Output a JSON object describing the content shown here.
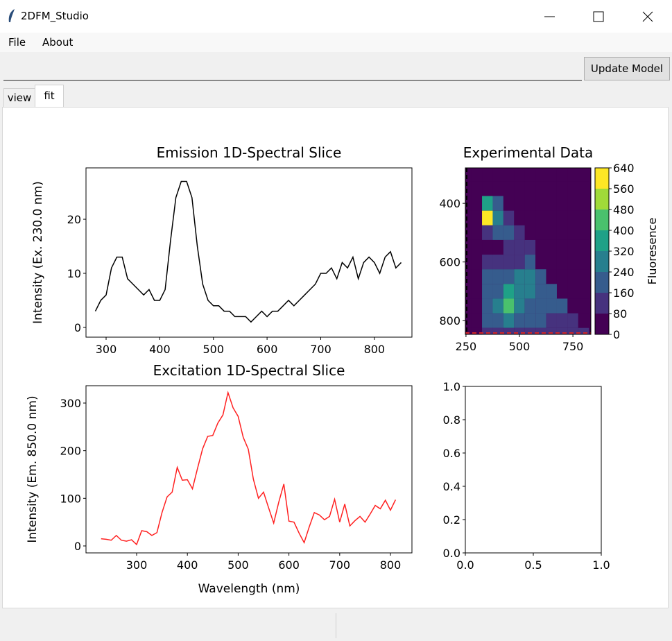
{
  "window": {
    "title": "2DFM_Studio"
  },
  "menu": [
    "File",
    "About"
  ],
  "toolbar": {
    "button": "Update Model"
  },
  "tabs": [
    "view",
    "fit"
  ],
  "chart_data": [
    {
      "type": "line",
      "title": "Emission 1D-Spectral Slice",
      "ylabel": "Intensity (Ex. 230.0 nm)",
      "x": [
        280,
        290,
        300,
        310,
        320,
        330,
        340,
        350,
        360,
        370,
        380,
        390,
        400,
        410,
        420,
        430,
        440,
        450,
        460,
        470,
        480,
        490,
        500,
        510,
        520,
        530,
        540,
        550,
        560,
        570,
        580,
        590,
        600,
        610,
        620,
        630,
        640,
        650,
        660,
        670,
        680,
        690,
        700,
        710,
        720,
        730,
        740,
        750,
        760,
        770,
        780,
        790,
        800,
        810,
        820,
        830,
        840,
        850
      ],
      "series": [
        {
          "color": "#000000",
          "values": [
            3,
            5,
            6,
            11,
            13,
            13,
            9,
            8,
            7,
            6,
            7,
            5,
            5,
            7,
            16,
            24,
            27,
            27,
            24,
            15,
            8,
            5,
            4,
            4,
            3,
            3,
            2,
            2,
            2,
            1,
            2,
            3,
            2,
            3,
            3,
            4,
            5,
            4,
            5,
            6,
            7,
            8,
            10,
            10,
            11,
            9,
            12,
            11,
            13,
            9,
            12,
            13,
            12,
            10,
            13,
            14,
            11,
            12
          ]
        }
      ],
      "xlim": [
        262.5,
        870
      ],
      "ylim": [
        -1.8,
        29.5
      ],
      "xticks": [
        300,
        400,
        500,
        600,
        700,
        800
      ],
      "yticks": [
        0,
        10,
        20
      ]
    },
    {
      "type": "heatmap",
      "title": "Experimental Data",
      "colorbar_label": "Fluoresence",
      "x": [
        250,
        300,
        350,
        400,
        450,
        500,
        550,
        600,
        650,
        700,
        750,
        800
      ],
      "y": [
        300,
        350,
        400,
        450,
        500,
        550,
        600,
        650,
        700,
        750,
        800,
        850
      ],
      "z": [
        [
          0,
          0,
          0,
          0,
          0,
          0,
          0,
          0,
          0,
          0,
          0,
          0
        ],
        [
          0,
          0,
          0,
          0,
          0,
          0,
          0,
          0,
          0,
          0,
          0,
          0
        ],
        [
          0,
          0,
          320,
          160,
          0,
          0,
          0,
          0,
          0,
          0,
          0,
          0
        ],
        [
          0,
          0,
          560,
          240,
          80,
          0,
          0,
          0,
          0,
          0,
          0,
          0
        ],
        [
          0,
          0,
          80,
          160,
          160,
          80,
          0,
          0,
          0,
          0,
          0,
          0
        ],
        [
          0,
          0,
          0,
          0,
          80,
          80,
          80,
          0,
          0,
          0,
          0,
          0
        ],
        [
          0,
          0,
          80,
          80,
          80,
          80,
          160,
          0,
          0,
          0,
          0,
          0
        ],
        [
          0,
          0,
          160,
          160,
          160,
          240,
          240,
          160,
          0,
          0,
          0,
          0
        ],
        [
          0,
          0,
          160,
          160,
          320,
          240,
          240,
          160,
          160,
          0,
          0,
          0
        ],
        [
          0,
          0,
          160,
          240,
          400,
          240,
          160,
          160,
          160,
          160,
          0,
          0
        ],
        [
          0,
          0,
          160,
          160,
          240,
          160,
          160,
          160,
          80,
          80,
          80,
          0
        ],
        [
          0,
          0,
          80,
          80,
          80,
          80,
          80,
          80,
          80,
          80,
          80,
          80
        ]
      ],
      "levels": [
        0,
        80,
        160,
        240,
        320,
        400,
        480,
        560,
        640
      ],
      "colors": [
        "#440154",
        "#46327e",
        "#365c8d",
        "#277f8e",
        "#1fa187",
        "#4ac16d",
        "#a0da39",
        "#fde725"
      ],
      "xlim": [
        247,
        834
      ],
      "ylim": [
        847,
        279
      ],
      "xticks": [
        250,
        500,
        750
      ],
      "yticks": [
        400,
        600,
        800
      ]
    },
    {
      "type": "line",
      "title": "Excitation 1D-Spectral Slice",
      "ylabel": "Intensity (Em. 850.0 nm)",
      "xlabel": "Wavelength (nm)",
      "x": [
        230,
        240,
        250,
        260,
        270,
        280,
        290,
        300,
        310,
        320,
        330,
        340,
        350,
        360,
        370,
        380,
        390,
        400,
        410,
        420,
        430,
        440,
        450,
        460,
        470,
        480,
        490,
        500,
        510,
        520,
        530,
        540,
        550,
        560,
        570,
        580,
        590,
        600,
        610,
        620,
        630,
        640,
        650,
        660,
        670,
        680,
        690,
        700,
        710,
        720,
        730,
        740,
        750,
        760,
        770,
        780,
        790,
        800,
        810
      ],
      "series": [
        {
          "color": "#ff2020",
          "values": [
            15,
            14,
            12,
            22,
            12,
            10,
            13,
            3,
            32,
            30,
            22,
            28,
            70,
            103,
            113,
            165,
            138,
            139,
            120,
            163,
            204,
            230,
            232,
            258,
            275,
            322,
            290,
            272,
            228,
            203,
            140,
            100,
            113,
            80,
            48,
            92,
            130,
            52,
            50,
            27,
            7,
            40,
            70,
            65,
            55,
            62,
            98,
            50,
            88,
            42,
            53,
            62,
            50,
            67,
            85,
            78,
            96,
            75,
            97
          ]
        }
      ],
      "xlim": [
        200.3,
        842.3
      ],
      "ylim": [
        -14.6,
        336.4
      ],
      "xticks": [
        300,
        400,
        500,
        600,
        700,
        800
      ],
      "yticks": [
        0,
        100,
        200,
        300
      ]
    },
    {
      "type": "line",
      "x": [],
      "series": [],
      "xlim": [
        0,
        1
      ],
      "ylim": [
        0,
        1
      ],
      "xticks": [
        {
          "value": 0,
          "label": "0.0"
        },
        {
          "value": 0.5,
          "label": "0.5"
        },
        {
          "value": 1,
          "label": "1.0"
        }
      ],
      "yticks": [
        {
          "value": 0,
          "label": "0.0"
        },
        {
          "value": 0.2,
          "label": "0.2"
        },
        {
          "value": 0.4,
          "label": "0.4"
        },
        {
          "value": 0.6,
          "label": "0.6"
        },
        {
          "value": 0.8,
          "label": "0.8"
        },
        {
          "value": 1,
          "label": "1.0"
        }
      ]
    }
  ]
}
